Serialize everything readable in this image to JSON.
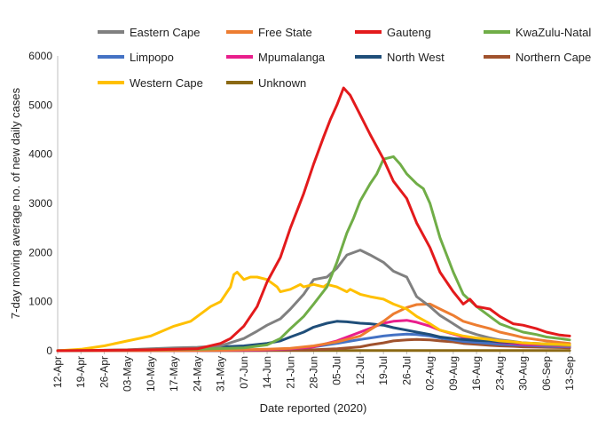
{
  "chart_data": {
    "type": "line",
    "title": "",
    "xlabel": "Date reported (2020)",
    "ylabel": "7-day moving average no. of new daily cases",
    "ylim": [
      0,
      6000
    ],
    "yticks": [
      0,
      1000,
      2000,
      3000,
      4000,
      5000,
      6000
    ],
    "y_tick_labels": [
      "0",
      "1000",
      "2000",
      "3000",
      "4000",
      "5000",
      "6000"
    ],
    "x_tick_labels": [
      "12-Apr",
      "19-Apr",
      "26-Apr",
      "03-May",
      "10-May",
      "17-May",
      "24-May",
      "31-May",
      "07-Jun",
      "14-Jun",
      "21-Jun",
      "28-Jun",
      "05-Jul",
      "12-Jul",
      "19-Jul",
      "26-Jul",
      "02-Aug",
      "09-Aug",
      "16-Aug",
      "23-Aug",
      "30-Aug",
      "06-Sep",
      "13-Sep"
    ],
    "x_days_range": [
      0,
      154
    ],
    "grid": false,
    "legend_position": "top",
    "series": [
      {
        "name": "Eastern Cape",
        "color": "#808080",
        "x": [
          0,
          14,
          21,
          28,
          35,
          42,
          49,
          56,
          60,
          63,
          67,
          70,
          74,
          77,
          81,
          84,
          87,
          91,
          94,
          98,
          101,
          105,
          108,
          112,
          115,
          119,
          122,
          126,
          130,
          133,
          137,
          140,
          144,
          147,
          151,
          154
        ],
        "values": [
          0,
          10,
          20,
          40,
          60,
          70,
          100,
          250,
          400,
          520,
          650,
          850,
          1150,
          1450,
          1500,
          1680,
          1950,
          2050,
          1950,
          1800,
          1620,
          1500,
          1100,
          900,
          720,
          550,
          420,
          330,
          260,
          220,
          190,
          160,
          140,
          120,
          110,
          100
        ]
      },
      {
        "name": "Free State",
        "color": "#ED7D31",
        "x": [
          0,
          42,
          49,
          56,
          63,
          70,
          77,
          84,
          91,
          98,
          101,
          105,
          108,
          112,
          115,
          119,
          122,
          126,
          130,
          133,
          137,
          140,
          144,
          147,
          151,
          154
        ],
        "values": [
          0,
          5,
          10,
          20,
          30,
          50,
          100,
          180,
          300,
          600,
          750,
          880,
          940,
          950,
          850,
          720,
          600,
          520,
          450,
          380,
          320,
          270,
          230,
          200,
          170,
          150
        ]
      },
      {
        "name": "Gauteng",
        "color": "#E31A1C",
        "x": [
          0,
          28,
          42,
          49,
          52,
          56,
          60,
          63,
          67,
          70,
          74,
          77,
          80,
          82,
          84,
          86,
          88,
          91,
          94,
          98,
          101,
          105,
          108,
          112,
          115,
          119,
          122,
          124,
          126,
          130,
          133,
          137,
          140,
          144,
          147,
          151,
          154
        ],
        "values": [
          0,
          20,
          40,
          150,
          250,
          500,
          900,
          1400,
          1900,
          2500,
          3200,
          3800,
          4350,
          4700,
          5000,
          5350,
          5200,
          4800,
          4400,
          3900,
          3450,
          3100,
          2600,
          2100,
          1600,
          1200,
          950,
          1050,
          900,
          850,
          700,
          550,
          520,
          450,
          380,
          320,
          300
        ]
      },
      {
        "name": "KwaZulu-Natal",
        "color": "#70AD47",
        "x": [
          0,
          42,
          56,
          63,
          67,
          70,
          74,
          77,
          81,
          84,
          87,
          89,
          91,
          94,
          96,
          98,
          101,
          103,
          105,
          108,
          110,
          112,
          115,
          119,
          122,
          126,
          130,
          133,
          137,
          140,
          144,
          147,
          151,
          154
        ],
        "values": [
          0,
          30,
          60,
          120,
          250,
          450,
          700,
          950,
          1300,
          1800,
          2400,
          2700,
          3050,
          3400,
          3600,
          3900,
          3950,
          3800,
          3600,
          3400,
          3300,
          3000,
          2300,
          1600,
          1150,
          900,
          700,
          550,
          450,
          380,
          330,
          280,
          250,
          220
        ]
      },
      {
        "name": "Limpopo",
        "color": "#4472C4",
        "x": [
          0,
          42,
          56,
          63,
          70,
          77,
          84,
          91,
          98,
          101,
          105,
          108,
          112,
          115,
          119,
          122,
          126,
          130,
          133,
          137,
          140,
          144,
          147,
          151,
          154
        ],
        "values": [
          0,
          5,
          10,
          20,
          40,
          80,
          150,
          230,
          300,
          320,
          340,
          330,
          300,
          260,
          220,
          190,
          170,
          150,
          130,
          120,
          110,
          100,
          90,
          85,
          80
        ]
      },
      {
        "name": "Mpumalanga",
        "color": "#E91E8C",
        "x": [
          0,
          42,
          56,
          63,
          70,
          77,
          84,
          91,
          98,
          101,
          105,
          108,
          112,
          115,
          119,
          122,
          126,
          130,
          133,
          137,
          140,
          144,
          147,
          151,
          154
        ],
        "values": [
          0,
          5,
          10,
          20,
          40,
          80,
          200,
          380,
          560,
          600,
          620,
          580,
          500,
          420,
          340,
          280,
          240,
          200,
          170,
          150,
          130,
          120,
          110,
          100,
          90
        ]
      },
      {
        "name": "North West",
        "color": "#1F4E79",
        "x": [
          0,
          28,
          35,
          42,
          49,
          56,
          63,
          67,
          70,
          74,
          77,
          81,
          84,
          87,
          91,
          94,
          98,
          101,
          105,
          108,
          112,
          115,
          119,
          122,
          126,
          130,
          133,
          137,
          140,
          144,
          147,
          151,
          154
        ],
        "values": [
          0,
          20,
          40,
          60,
          80,
          100,
          150,
          200,
          280,
          380,
          480,
          560,
          600,
          590,
          560,
          550,
          520,
          470,
          420,
          380,
          330,
          280,
          250,
          230,
          210,
          200,
          180,
          170,
          160,
          150,
          140,
          130,
          120
        ]
      },
      {
        "name": "Northern Cape",
        "color": "#A0522D",
        "x": [
          0,
          56,
          70,
          77,
          84,
          91,
          94,
          98,
          101,
          105,
          108,
          112,
          115,
          119,
          122,
          126,
          130,
          133,
          137,
          140,
          144,
          147,
          151,
          154
        ],
        "values": [
          0,
          5,
          10,
          20,
          40,
          80,
          120,
          160,
          200,
          220,
          230,
          220,
          200,
          180,
          150,
          130,
          110,
          100,
          90,
          80,
          75,
          70,
          65,
          60
        ]
      },
      {
        "name": "Western Cape",
        "color": "#FFC000",
        "x": [
          0,
          7,
          14,
          21,
          28,
          35,
          40,
          42,
          46,
          49,
          52,
          53,
          54,
          56,
          58,
          60,
          63,
          66,
          67,
          70,
          73,
          74,
          77,
          80,
          81,
          84,
          87,
          88,
          91,
          94,
          98,
          101,
          105,
          108,
          112,
          115,
          119,
          122,
          126,
          130,
          133,
          137,
          140,
          144,
          147,
          151,
          154
        ],
        "values": [
          0,
          30,
          100,
          200,
          300,
          500,
          600,
          700,
          900,
          1000,
          1300,
          1550,
          1600,
          1450,
          1500,
          1500,
          1450,
          1300,
          1200,
          1250,
          1350,
          1300,
          1350,
          1300,
          1350,
          1300,
          1200,
          1250,
          1150,
          1100,
          1050,
          950,
          850,
          700,
          550,
          420,
          350,
          300,
          260,
          230,
          200,
          180,
          160,
          150,
          140,
          130,
          120
        ]
      },
      {
        "name": "Unknown",
        "color": "#8B6914",
        "x": [
          0,
          154
        ],
        "values": [
          5,
          5
        ]
      }
    ]
  }
}
